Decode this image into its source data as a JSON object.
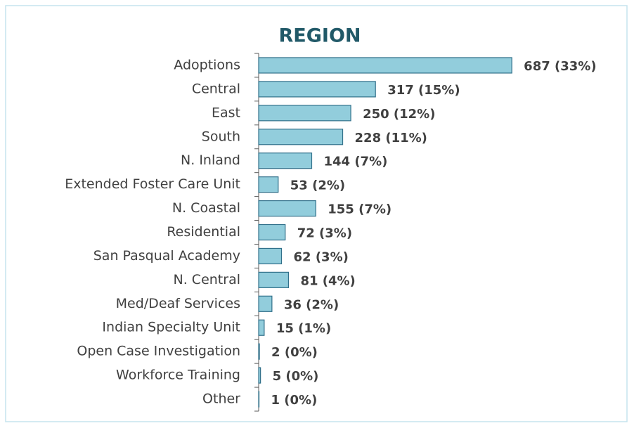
{
  "chart_data": {
    "type": "bar",
    "orientation": "horizontal",
    "title": "REGION",
    "categories": [
      "Adoptions",
      "Central",
      "East",
      "South",
      "N. Inland",
      "Extended Foster Care Unit",
      "N. Coastal",
      "Residential",
      "San Pasqual Academy",
      "N. Central",
      "Med/Deaf Services",
      "Indian Specialty Unit",
      "Open Case Investigation",
      "Workforce Training",
      "Other"
    ],
    "values": [
      687,
      317,
      250,
      228,
      144,
      53,
      155,
      72,
      62,
      81,
      36,
      15,
      2,
      5,
      1
    ],
    "value_labels": [
      "687 (33%)",
      "317 (15%)",
      "250 (12%)",
      "228 (11%)",
      "144 (7%)",
      "53 (2%)",
      "155 (7%)",
      "72 (3%)",
      "62 (3%)",
      "81 (4%)",
      "36 (2%)",
      "15 (1%)",
      "2 (0%)",
      "5 (0%)",
      "1 (0%)"
    ],
    "color": "#92cddc",
    "xlim": [
      0,
      700
    ]
  }
}
